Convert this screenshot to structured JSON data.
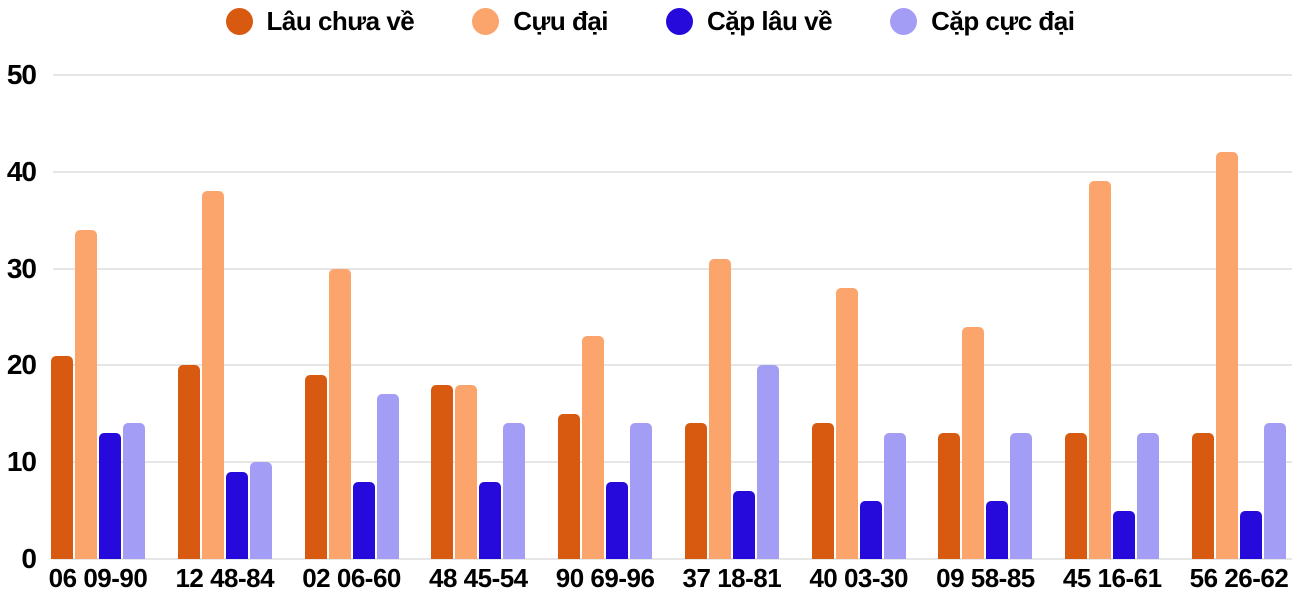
{
  "chart_data": {
    "type": "bar",
    "title": "",
    "xlabel": "",
    "ylabel": "",
    "categories": [
      "06 09-90",
      "12 48-84",
      "02 06-60",
      "48 45-54",
      "90 69-96",
      "37 18-81",
      "40 03-30",
      "09 58-85",
      "45 16-61",
      "56 26-62"
    ],
    "series": [
      {
        "name": "Lâu chưa về",
        "color": "#d85a10",
        "values": [
          21,
          20,
          19,
          18,
          15,
          14,
          14,
          13,
          13,
          13
        ]
      },
      {
        "name": "Cựu đại",
        "color": "#fba46c",
        "values": [
          34,
          38,
          30,
          18,
          23,
          31,
          28,
          24,
          39,
          42
        ]
      },
      {
        "name": "Cặp lâu về",
        "color": "#2609db",
        "values": [
          13,
          9,
          8,
          8,
          8,
          7,
          6,
          6,
          5,
          5
        ]
      },
      {
        "name": "Cặp cực đại",
        "color": "#a49df5",
        "values": [
          14,
          10,
          17,
          14,
          14,
          20,
          13,
          13,
          13,
          14
        ]
      }
    ],
    "ylim": [
      0,
      50
    ],
    "yticks": [
      0,
      10,
      20,
      30,
      40,
      50
    ],
    "grid": true,
    "legend_position": "top",
    "colors": {
      "gridline": "#e6e6e6",
      "text": "#000000",
      "background": "#ffffff"
    }
  }
}
